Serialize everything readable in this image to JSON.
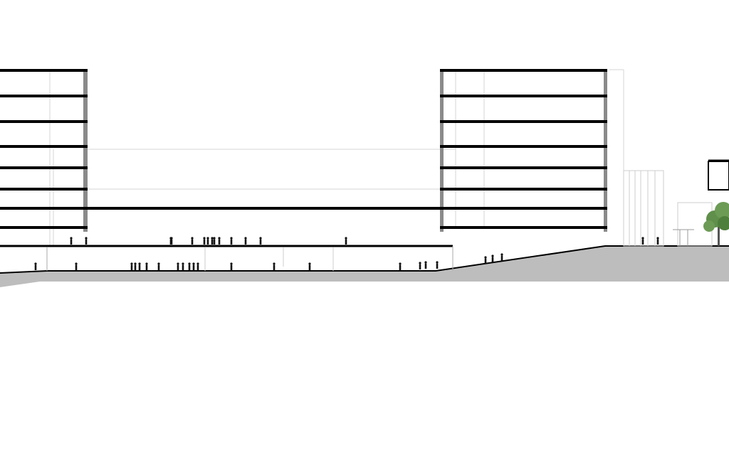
{
  "drawing": {
    "type": "architectural-section",
    "colors": {
      "background": "#ffffff",
      "slab": "#000000",
      "ground": "#bdbdbd",
      "thin_line": "#cfcfcf",
      "column": "#8a8a8a",
      "figure": "#111111",
      "tree": "#5f8f4a"
    },
    "left_building": {
      "floors": 8
    },
    "right_building": {
      "floors": 8
    },
    "upper_deck_people": 14,
    "lower_deck_people": 16,
    "ramp_people": 3,
    "plaza_people": 2,
    "trees": 1
  }
}
